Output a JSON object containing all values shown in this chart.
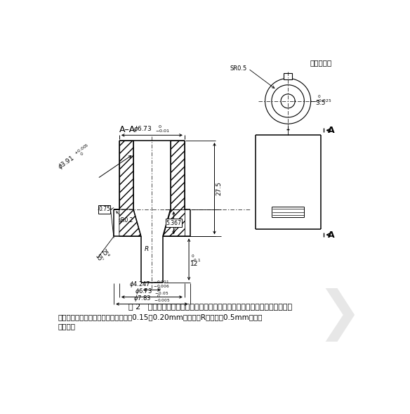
{
  "title": "图 2   锁定鲁尔圆锥接头泄漏、旋开扔矩分离和应力开裂试验用标准测试接头",
  "note_line1": "注：所有凸耳或螺纹型式的外边缘应有14「0.15～0.20mm」的半径。R是不超过0.5mm的半径",
  "note_line1_zh": "注：所有凸耳或螺纹型式的外边缘应有14「0.15～0.20mm」的半径。R是不超过0.5mm的半径",
  "note_line2": "或倒角。",
  "unit_label": "单位：毫米",
  "bg_color": "#ffffff",
  "line_color": "#000000",
  "dim_color": "#000000",
  "note1": "注：所有凸耳或螺纹型式的外边缘应有14 0.15～0.20mm的半径。R是不超过0.5mm的半径",
  "note2": "或倒角。"
}
